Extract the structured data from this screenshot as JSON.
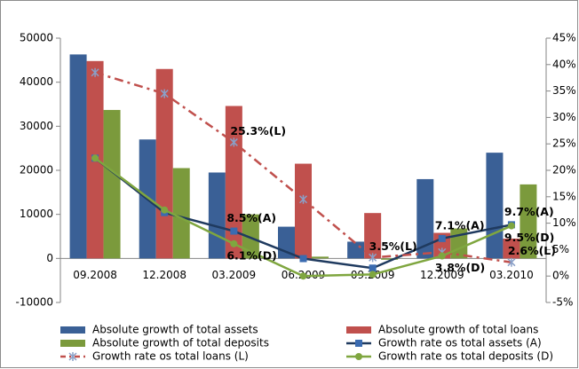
{
  "chart_data": {
    "type": "bar-line",
    "categories": [
      "09.2008",
      "12.2008",
      "03.2009",
      "06.2009",
      "09.2009",
      "12.2009",
      "03.2010"
    ],
    "ylim": [
      -10000,
      50000
    ],
    "yticks": [
      -10000,
      0,
      10000,
      20000,
      30000,
      40000,
      50000
    ],
    "y2lim": [
      -5,
      45
    ],
    "y2ticks": [
      {
        "value": -5,
        "label": "-5%"
      },
      {
        "value": 0,
        "label": "0%"
      },
      {
        "value": 5,
        "label": "5%"
      },
      {
        "value": 10,
        "label": "10%"
      },
      {
        "value": 15,
        "label": "15%"
      },
      {
        "value": 20,
        "label": "20%"
      },
      {
        "value": 25,
        "label": "25%"
      },
      {
        "value": 30,
        "label": "30%"
      },
      {
        "value": 35,
        "label": "35%"
      },
      {
        "value": 40,
        "label": "40%"
      },
      {
        "value": 45,
        "label": "45%"
      }
    ],
    "series": [
      {
        "name": "Absolute growth of total assets",
        "type": "bar",
        "color": "#3a6096",
        "values": [
          46300,
          27000,
          19500,
          7200,
          3800,
          18000,
          24000
        ]
      },
      {
        "name": "Absolute growth of total loans",
        "type": "bar",
        "color": "#c0504d",
        "values": [
          44800,
          43000,
          34600,
          21500,
          10300,
          5800,
          4500
        ]
      },
      {
        "name": "Absolute growth of total deposits",
        "type": "bar",
        "color": "#7b9a3c",
        "values": [
          33700,
          20500,
          10000,
          400,
          -300,
          6800,
          16800
        ]
      },
      {
        "name": "Growth rate os total assets (A)",
        "type": "line",
        "axis": "y2",
        "color": "#1f3a5f",
        "marker": "square",
        "marker_color": "#3a6bb0",
        "dash": false,
        "values": [
          22.3,
          12,
          8.5,
          3.3,
          1.5,
          7.1,
          9.7
        ],
        "value_labels": [
          null,
          null,
          "8.5%(A)",
          null,
          null,
          "7.1%(A)",
          "9.7%(A)"
        ]
      },
      {
        "name": "Growth rate os total loans (L)",
        "type": "line",
        "axis": "y2",
        "color": "#c0504d",
        "marker": "star",
        "marker_color": "#8aa0c8",
        "dash": true,
        "values": [
          38.5,
          34.5,
          25.3,
          14.5,
          3.5,
          4.5,
          2.6
        ],
        "value_labels": [
          null,
          null,
          "25.3%(L)",
          null,
          "3.5%(L)",
          null,
          "2.6%(L)"
        ]
      },
      {
        "name": "Growth rate os total deposits (D)",
        "type": "line",
        "axis": "y2",
        "color": "#7fa63f",
        "marker": "circle",
        "marker_color": "#7fa63f",
        "dash": false,
        "values": [
          22.3,
          12.5,
          6.1,
          0,
          0.3,
          3.8,
          9.5
        ],
        "value_labels": [
          null,
          null,
          "6.1%(D)",
          null,
          null,
          "3.8%(D)",
          "9.5%(D)"
        ]
      }
    ]
  }
}
